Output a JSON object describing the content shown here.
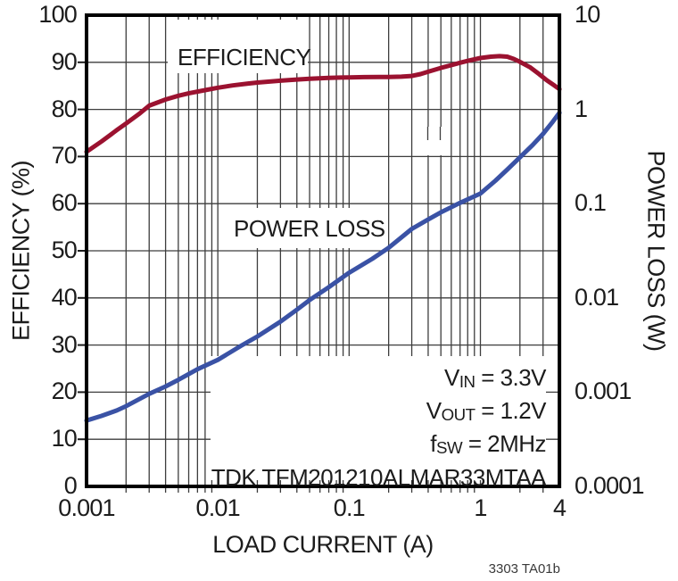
{
  "footer": "3303 TA01b",
  "colors": {
    "efficiency": "#9B1230",
    "power_loss": "#3A52A5",
    "grid": "#3D3D3D",
    "frame": "#000000",
    "text": "#1C1C1C",
    "background": "#FFFFFF"
  },
  "annotations": [
    {
      "pre": "V",
      "sub": "IN",
      "post": " = 3.3V"
    },
    {
      "pre": "V",
      "sub": "OUT",
      "post": " = 1.2V"
    },
    {
      "pre": "f",
      "sub": "SW",
      "post": " = 2MHz"
    },
    {
      "pre": "TDK TFM201210ALMAR33MTAA",
      "sub": "",
      "post": ""
    }
  ],
  "chart_data": {
    "type": "line",
    "title": "",
    "x_axis": {
      "label": "LOAD CURRENT (A)",
      "scale": "log",
      "min": 0.001,
      "max": 4,
      "ticks": [
        0.001,
        0.01,
        0.1,
        1,
        4
      ],
      "tick_labels": [
        "0.001",
        "0.01",
        "0.1",
        "1",
        "4"
      ]
    },
    "y_left": {
      "label": "EFFICIENCY (%)",
      "scale": "linear",
      "min": 0,
      "max": 100,
      "ticks": [
        0,
        10,
        20,
        30,
        40,
        50,
        60,
        70,
        80,
        90,
        100
      ],
      "tick_labels": [
        "0",
        "10",
        "20",
        "30",
        "40",
        "50",
        "60",
        "70",
        "80",
        "90",
        "100"
      ]
    },
    "y_right": {
      "label": "POWER LOSS (W)",
      "scale": "log",
      "min": 0.0001,
      "max": 10,
      "ticks": [
        10,
        1,
        0.1,
        0.01,
        0.001,
        0.0001
      ],
      "tick_labels": [
        "10",
        "1",
        "0.1",
        "0.01",
        "0.001",
        "0.0001"
      ]
    },
    "grid": "on",
    "series": [
      {
        "name": "EFFICIENCY",
        "axis": "left",
        "unit": "%",
        "color": "#9B1230",
        "points": [
          [
            0.001,
            71
          ],
          [
            0.0013,
            73.2
          ],
          [
            0.0017,
            75.6
          ],
          [
            0.002,
            77
          ],
          [
            0.0025,
            79
          ],
          [
            0.003,
            80.8
          ],
          [
            0.004,
            82.1
          ],
          [
            0.005,
            82.9
          ],
          [
            0.006,
            83.4
          ],
          [
            0.008,
            84.1
          ],
          [
            0.01,
            84.6
          ],
          [
            0.013,
            85.1
          ],
          [
            0.017,
            85.5
          ],
          [
            0.02,
            85.7
          ],
          [
            0.03,
            86.1
          ],
          [
            0.04,
            86.35
          ],
          [
            0.05,
            86.5
          ],
          [
            0.07,
            86.7
          ],
          [
            0.1,
            86.8
          ],
          [
            0.13,
            86.85
          ],
          [
            0.17,
            86.9
          ],
          [
            0.2,
            86.9
          ],
          [
            0.25,
            86.95
          ],
          [
            0.3,
            87.1
          ],
          [
            0.35,
            87.5
          ],
          [
            0.4,
            88
          ],
          [
            0.5,
            88.8
          ],
          [
            0.6,
            89.4
          ],
          [
            0.7,
            89.9
          ],
          [
            0.8,
            90.3
          ],
          [
            1.0,
            90.9
          ],
          [
            1.2,
            91.2
          ],
          [
            1.4,
            91.3
          ],
          [
            1.6,
            91.2
          ],
          [
            1.8,
            90.7
          ],
          [
            2.0,
            90.1
          ],
          [
            2.4,
            88.9
          ],
          [
            2.8,
            87.5
          ],
          [
            3.2,
            86.2
          ],
          [
            3.6,
            85.2
          ],
          [
            4.0,
            84.3
          ]
        ]
      },
      {
        "name": "POWER LOSS",
        "axis": "right",
        "unit": "W",
        "color": "#3A52A5",
        "points": [
          [
            0.001,
            0.0005
          ],
          [
            0.0013,
            0.00056
          ],
          [
            0.0017,
            0.00064
          ],
          [
            0.002,
            0.00071
          ],
          [
            0.003,
            0.00096
          ],
          [
            0.004,
            0.00115
          ],
          [
            0.005,
            0.00135
          ],
          [
            0.007,
            0.00175
          ],
          [
            0.01,
            0.0022
          ],
          [
            0.015,
            0.0031
          ],
          [
            0.02,
            0.0039
          ],
          [
            0.03,
            0.0056
          ],
          [
            0.04,
            0.0075
          ],
          [
            0.05,
            0.0095
          ],
          [
            0.07,
            0.013
          ],
          [
            0.1,
            0.0185
          ],
          [
            0.15,
            0.026
          ],
          [
            0.2,
            0.034
          ],
          [
            0.3,
            0.054
          ],
          [
            0.4,
            0.068
          ],
          [
            0.5,
            0.081
          ],
          [
            0.7,
            0.102
          ],
          [
            1.0,
            0.128
          ],
          [
            1.3,
            0.175
          ],
          [
            1.6,
            0.23
          ],
          [
            2.0,
            0.31
          ],
          [
            2.5,
            0.42
          ],
          [
            3.0,
            0.55
          ],
          [
            3.5,
            0.72
          ],
          [
            4.0,
            0.92
          ]
        ]
      }
    ]
  }
}
